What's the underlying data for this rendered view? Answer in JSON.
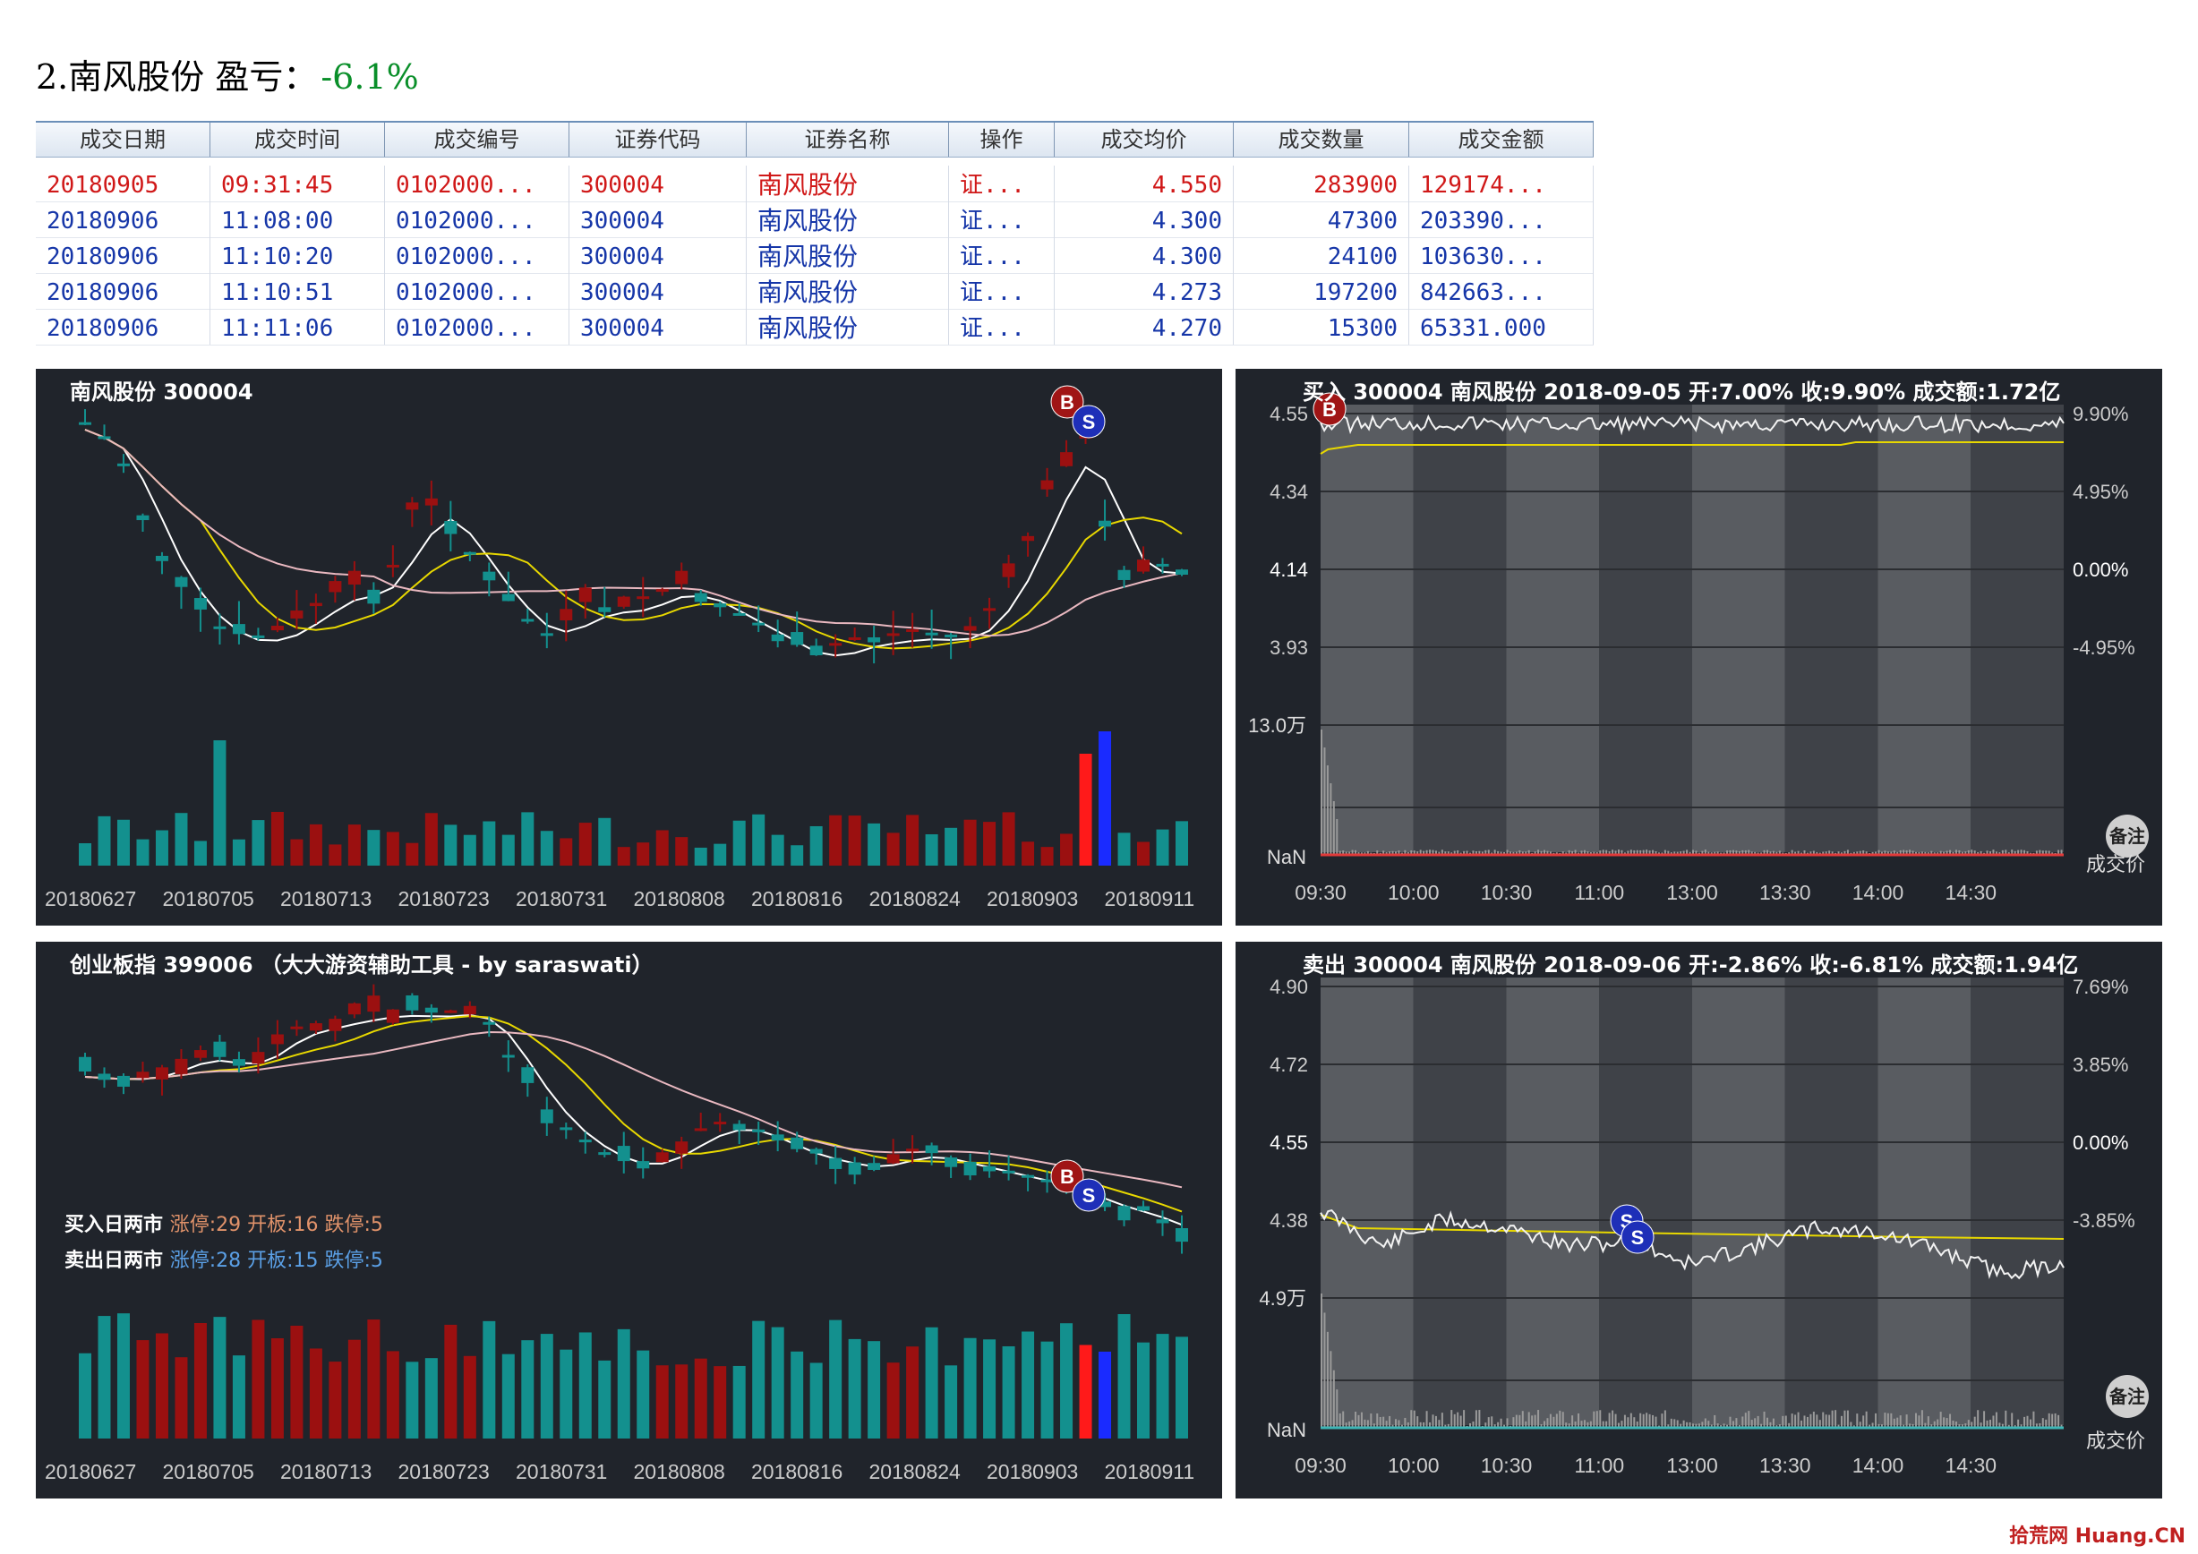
{
  "header": {
    "title": "2.南风股份 盈亏：",
    "pnl": "-6.1%"
  },
  "table": {
    "columns": [
      "成交日期",
      "成交时间",
      "成交编号",
      "证券代码",
      "证券名称",
      "操作",
      "成交均价",
      "成交数量",
      "成交金额"
    ],
    "rows": [
      [
        "20180905",
        "09:31:45",
        "0102000...",
        "300004",
        "南风股份",
        "证...",
        "4.550",
        "283900",
        "129174..."
      ],
      [
        "20180906",
        "11:08:00",
        "0102000...",
        "300004",
        "南风股份",
        "证...",
        "4.300",
        "47300",
        "203390..."
      ],
      [
        "20180906",
        "11:10:20",
        "0102000...",
        "300004",
        "南风股份",
        "证...",
        "4.300",
        "24100",
        "103630..."
      ],
      [
        "20180906",
        "11:10:51",
        "0102000...",
        "300004",
        "南风股份",
        "证...",
        "4.273",
        "197200",
        "842663..."
      ],
      [
        "20180906",
        "11:11:06",
        "0102000...",
        "300004",
        "南风股份",
        "证...",
        "4.270",
        "15300",
        "65331.000"
      ]
    ]
  },
  "stock_chart": {
    "title": "南风股份 300004",
    "x_labels": [
      "20180627",
      "20180705",
      "20180713",
      "20180723",
      "20180731",
      "20180808",
      "20180816",
      "20180824",
      "20180903",
      "20180911"
    ],
    "marker_b": "B",
    "marker_s": "S"
  },
  "index_chart": {
    "title": "创业板指 399006  （大大游资辅助工具 - by saraswati）",
    "x_labels": [
      "20180627",
      "20180705",
      "20180713",
      "20180723",
      "20180731",
      "20180808",
      "20180816",
      "20180824",
      "20180903",
      "20180911"
    ],
    "buy_note_label": "买入日两市",
    "buy_note_values": "涨停:29 开板:16 跌停:5",
    "sell_note_label": "卖出日两市",
    "sell_note_values": "涨停:28 开板:15 跌停:5",
    "marker_b": "B",
    "marker_s": "S"
  },
  "intraday_buy": {
    "title": "买入 300004 南风股份 2018-09-05 开:7.00% 收:9.90% 成交额:1.72亿",
    "price_labels": [
      "4.55",
      "4.34",
      "4.14",
      "3.93"
    ],
    "pct_labels": [
      "9.90%",
      "4.95%",
      "0.00%",
      "-4.95%"
    ],
    "vol_top": "13.0万",
    "vol_bottom": "NaN",
    "time_labels": [
      "09:30",
      "10:00",
      "10:30",
      "11:00",
      "13:00",
      "13:30",
      "14:00",
      "14:30"
    ],
    "note_button": "备注",
    "price_tag": "成交价",
    "marker_b": "B"
  },
  "intraday_sell": {
    "title": "卖出 300004 南风股份 2018-09-06 开:-2.86% 收:-6.81% 成交额:1.94亿",
    "price_labels": [
      "4.90",
      "4.72",
      "4.55",
      "4.38"
    ],
    "pct_labels": [
      "7.69%",
      "3.85%",
      "0.00%",
      "-3.85%"
    ],
    "vol_top": "4.9万",
    "vol_bottom": "NaN",
    "time_labels": [
      "09:30",
      "10:00",
      "10:30",
      "11:00",
      "13:00",
      "13:30",
      "14:00",
      "14:30"
    ],
    "note_button": "备注",
    "price_tag": "成交价",
    "marker_s": "S"
  },
  "colors": {
    "up": "#9b1010",
    "down": "#13908e",
    "ma5": "#ffffff",
    "ma10": "#e8d800",
    "ma20": "#e9b8c0",
    "panel_bg": "#20242b"
  },
  "logo": "拾荒网 Huang.CN"
}
